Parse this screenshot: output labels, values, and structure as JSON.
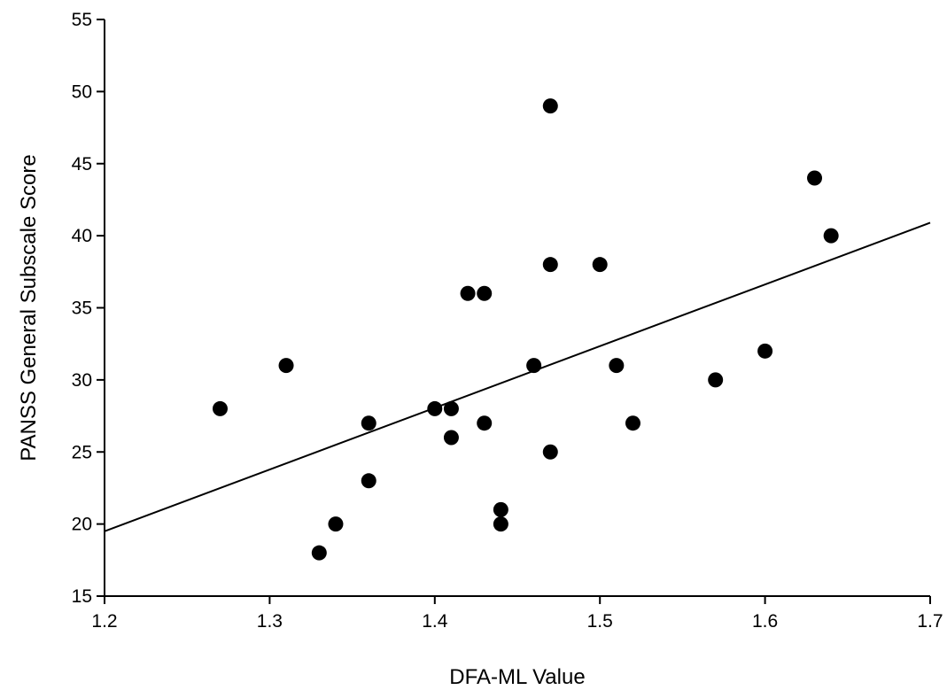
{
  "chart_data": {
    "type": "scatter",
    "title": "",
    "xlabel": "DFA-ML Value",
    "ylabel": "PANSS General Subscale Score",
    "xlim": [
      1.2,
      1.7
    ],
    "ylim": [
      15,
      55
    ],
    "xticks": [
      "1.2",
      "1.3",
      "1.4",
      "1.5",
      "1.6",
      "1.7"
    ],
    "yticks": [
      "15",
      "20",
      "25",
      "30",
      "35",
      "40",
      "45",
      "50",
      "55"
    ],
    "grid": false,
    "legend": "none",
    "point_color": "#000000",
    "line_color": "#000000",
    "points": [
      {
        "x": 1.27,
        "y": 28
      },
      {
        "x": 1.31,
        "y": 31
      },
      {
        "x": 1.33,
        "y": 18
      },
      {
        "x": 1.34,
        "y": 20
      },
      {
        "x": 1.36,
        "y": 27
      },
      {
        "x": 1.36,
        "y": 23
      },
      {
        "x": 1.4,
        "y": 28
      },
      {
        "x": 1.41,
        "y": 28
      },
      {
        "x": 1.41,
        "y": 26
      },
      {
        "x": 1.42,
        "y": 36
      },
      {
        "x": 1.43,
        "y": 36
      },
      {
        "x": 1.43,
        "y": 27
      },
      {
        "x": 1.44,
        "y": 21
      },
      {
        "x": 1.44,
        "y": 20
      },
      {
        "x": 1.46,
        "y": 31
      },
      {
        "x": 1.47,
        "y": 49
      },
      {
        "x": 1.47,
        "y": 38
      },
      {
        "x": 1.47,
        "y": 25
      },
      {
        "x": 1.5,
        "y": 38
      },
      {
        "x": 1.51,
        "y": 31
      },
      {
        "x": 1.52,
        "y": 27
      },
      {
        "x": 1.57,
        "y": 30
      },
      {
        "x": 1.6,
        "y": 32
      },
      {
        "x": 1.63,
        "y": 44
      },
      {
        "x": 1.64,
        "y": 40
      }
    ],
    "trendline": {
      "x": [
        1.2,
        1.7
      ],
      "y": [
        19.5,
        40.9
      ]
    }
  }
}
